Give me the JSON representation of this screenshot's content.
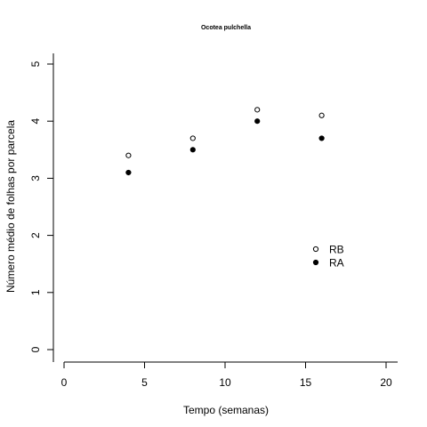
{
  "chart_data": {
    "type": "scatter",
    "title": "Ocotea pulchella",
    "xlabel": "Tempo (semanas)",
    "ylabel": "Número médio de folhas por parcela",
    "xlim": [
      0,
      20
    ],
    "ylim": [
      0,
      5
    ],
    "xticks": [
      0,
      5,
      10,
      15,
      20
    ],
    "yticks": [
      0,
      1,
      2,
      3,
      4,
      5
    ],
    "grid": false,
    "legend_position": "bottom-right",
    "series": [
      {
        "name": "RB",
        "marker": "open-circle",
        "x": [
          4,
          8,
          12,
          16
        ],
        "y": [
          3.4,
          3.7,
          4.2,
          4.1
        ]
      },
      {
        "name": "RA",
        "marker": "filled-circle",
        "x": [
          4,
          8,
          12,
          16
        ],
        "y": [
          3.1,
          3.5,
          4.0,
          3.7
        ]
      }
    ]
  }
}
